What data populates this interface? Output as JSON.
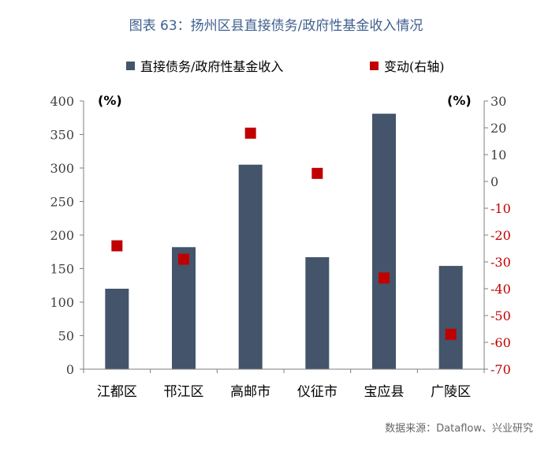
{
  "title": "图表 63：扬州区县直接债务/政府性基金收入情况",
  "source": "数据来源：Dataflow、兴业研究",
  "colors": {
    "bar": "#44546a",
    "marker": "#c00000",
    "title": "#3f5f8f",
    "right_axis_text": "#c00000"
  },
  "chart_data": {
    "type": "bar",
    "categories": [
      "江都区",
      "邗江区",
      "高邮市",
      "仪征市",
      "宝应县",
      "广陵区"
    ],
    "series": [
      {
        "name": "直接债务/政府性基金收入",
        "type": "bar",
        "axis": "left",
        "values": [
          120,
          182,
          305,
          167,
          381,
          154
        ]
      },
      {
        "name": "变动(右轴)",
        "type": "scatter",
        "axis": "right",
        "values": [
          -24,
          -29,
          18,
          3,
          -36,
          -57
        ]
      }
    ],
    "left_axis": {
      "unit": "(%)",
      "ylim": [
        0,
        400
      ],
      "ticks": [
        0,
        50,
        100,
        150,
        200,
        250,
        300,
        350,
        400
      ]
    },
    "right_axis": {
      "unit": "(%)",
      "ylim": [
        -70,
        30
      ],
      "ticks": [
        30,
        20,
        10,
        0,
        -10,
        -20,
        -30,
        -40,
        -50,
        -60,
        -70
      ]
    },
    "grid": false,
    "legend_position": "top"
  }
}
